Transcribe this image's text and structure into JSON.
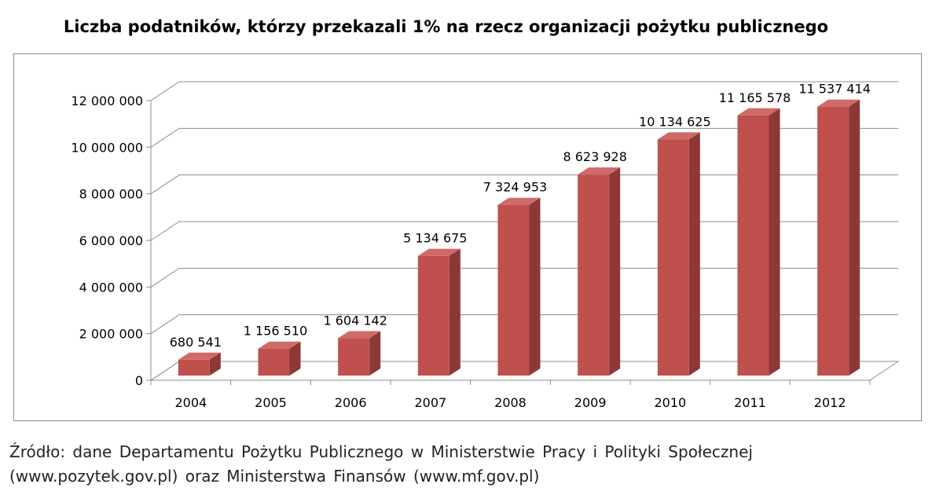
{
  "chart_data": {
    "type": "bar",
    "title": "Liczba podatników, którzy przekazali 1% na rzecz organizacji pożytku publicznego",
    "categories": [
      "2004",
      "2005",
      "2006",
      "2007",
      "2008",
      "2009",
      "2010",
      "2011",
      "2012"
    ],
    "values": [
      680541,
      1156510,
      1604142,
      5134675,
      7324953,
      8623928,
      10134625,
      11165578,
      11537414
    ],
    "value_labels": [
      "680 541",
      "1 156 510",
      "1 604 142",
      "5 134 675",
      "7 324 953",
      "8 623 928",
      "10 134 625",
      "11 165 578",
      "11 537 414"
    ],
    "ylim": [
      0,
      12000000
    ],
    "yticks": [
      0,
      2000000,
      4000000,
      6000000,
      8000000,
      10000000,
      12000000
    ],
    "ytick_labels": [
      "0",
      "2 000 000",
      "4 000 000",
      "6 000 000",
      "8 000 000",
      "10 000 000",
      "12 000 000"
    ],
    "xlabel": "",
    "ylabel": "",
    "grid": true,
    "legend": "none",
    "style": "3d-column",
    "bar_color": "#c0504d",
    "bar_top_color": "#d06a67",
    "bar_side_color": "#8c3836"
  },
  "source": {
    "line1": "Źródło: dane Departamentu Pożytku Publicznego w Ministerstwie Pracy i Polityki Społecznej",
    "line2": "(www.pozytek.gov.pl) oraz Ministerstwa Finansów (www.mf.gov.pl)"
  }
}
